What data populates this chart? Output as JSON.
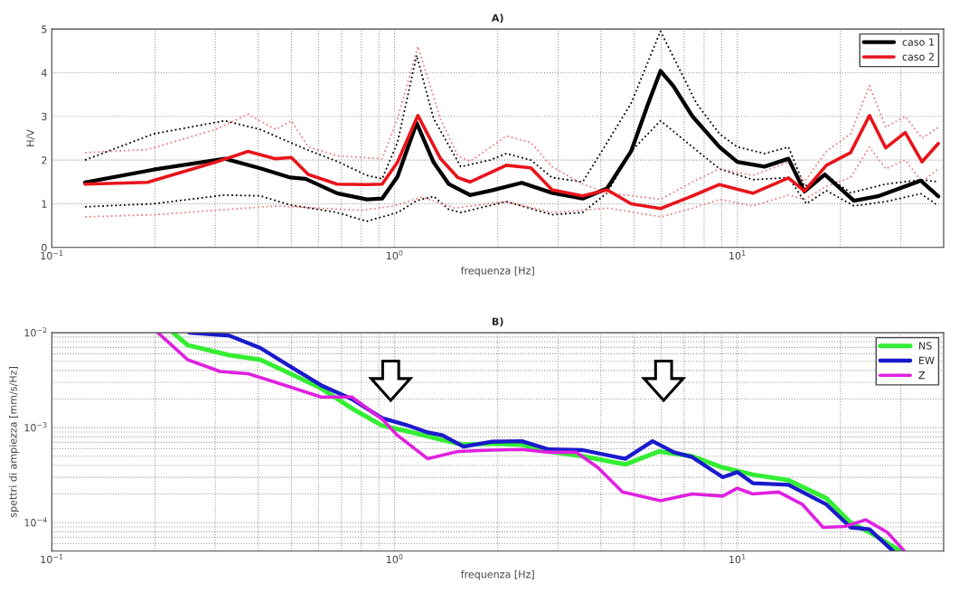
{
  "chart_data": [
    {
      "type": "line",
      "title": "A)",
      "xlabel": "frequenza [Hz]",
      "ylabel": "H/V",
      "log": "x",
      "grid": true,
      "legend": "top right",
      "xlim": [
        0.1,
        40
      ],
      "xticks": [
        {
          "value": 0.1,
          "label": "10$^{−1}$"
        },
        {
          "value": 1,
          "label": "10$^{0}$"
        },
        {
          "value": 10,
          "label": "10$^{1}$"
        }
      ],
      "ylim": [
        0,
        5
      ],
      "yticks": [
        0,
        1,
        2,
        3,
        4,
        5
      ],
      "series": [
        {
          "color": "#000000",
          "line_style": "dotted",
          "x": [
            0.125,
            0.198,
            0.32,
            0.406,
            0.55,
            0.68,
            0.83,
            0.92,
            1.02,
            1.16,
            1.3,
            1.56,
            1.9,
            2.12,
            2.5,
            2.88,
            3.54,
            4.17,
            4.9,
            5.97,
            7.6,
            8.87,
            10.0,
            12.0,
            14.1,
            15.7,
            18.2,
            21.4,
            27.1,
            34.6,
            38.6
          ],
          "values": [
            2.0,
            2.6,
            2.9,
            2.7,
            2.25,
            1.97,
            1.65,
            1.57,
            2.4,
            4.4,
            2.95,
            1.85,
            2.0,
            2.15,
            2.0,
            1.6,
            1.5,
            2.4,
            3.3,
            4.95,
            3.3,
            2.6,
            2.3,
            2.15,
            2.3,
            1.4,
            1.65,
            1.25,
            1.45,
            1.55,
            1.5
          ]
        },
        {
          "color": "#000000",
          "line_style": "dotted",
          "x": [
            0.125,
            0.198,
            0.32,
            0.406,
            0.497,
            0.68,
            0.83,
            1.02,
            1.16,
            1.3,
            1.44,
            1.56,
            2.12,
            2.88,
            3.54,
            4.17,
            4.9,
            5.97,
            7.4,
            8.87,
            11.1,
            14.1,
            15.9,
            18.2,
            21.9,
            27.1,
            34.3,
            38.6
          ],
          "values": [
            0.93,
            1.0,
            1.2,
            1.18,
            0.97,
            0.8,
            0.6,
            0.8,
            1.07,
            1.17,
            0.87,
            0.8,
            1.05,
            0.75,
            0.8,
            1.25,
            2.2,
            2.9,
            2.3,
            1.8,
            1.55,
            1.6,
            1.0,
            1.3,
            0.95,
            1.05,
            1.23,
            0.95
          ]
        },
        {
          "color": "#f08080",
          "line_style": "dotted",
          "x": [
            0.125,
            0.19,
            0.3,
            0.374,
            0.45,
            0.5,
            0.56,
            0.68,
            0.92,
            1.02,
            1.17,
            1.36,
            1.53,
            1.66,
            2.12,
            2.5,
            2.88,
            3.54,
            4.17,
            5.97,
            7.4,
            8.87,
            11.1,
            14.1,
            15.7,
            18.2,
            21.4,
            24.3,
            27.1,
            30.9,
            34.6,
            38.6
          ],
          "values": [
            2.17,
            2.24,
            2.7,
            3.05,
            2.7,
            2.9,
            2.3,
            2.1,
            2.03,
            2.95,
            4.6,
            2.95,
            2.1,
            1.97,
            2.55,
            2.4,
            1.85,
            1.45,
            1.25,
            1.1,
            1.5,
            1.8,
            1.65,
            1.95,
            1.5,
            2.2,
            2.6,
            3.7,
            2.75,
            3.0,
            2.5,
            2.75
          ]
        },
        {
          "color": "#f08080",
          "line_style": "dotted",
          "x": [
            0.125,
            0.2,
            0.3,
            0.45,
            0.6,
            0.8,
            1.0,
            1.2,
            1.5,
            2.1,
            2.9,
            4.2,
            6.0,
            7.4,
            8.9,
            11.1,
            14.1,
            15.7,
            18.2,
            21.4,
            24.3,
            27.1,
            30.9,
            34.6,
            38.6
          ],
          "values": [
            0.7,
            0.75,
            0.85,
            0.95,
            0.9,
            0.85,
            0.95,
            1.15,
            0.9,
            1.05,
            0.8,
            0.9,
            0.7,
            0.9,
            1.1,
            0.95,
            1.2,
            1.1,
            1.4,
            1.6,
            2.3,
            1.8,
            2.0,
            1.5,
            1.8
          ]
        },
        {
          "name": "caso 1",
          "color": "#000000",
          "line_style": "solid",
          "x": [
            0.125,
            0.198,
            0.32,
            0.406,
            0.497,
            0.55,
            0.68,
            0.83,
            0.92,
            1.02,
            1.16,
            1.3,
            1.44,
            1.66,
            1.91,
            2.35,
            2.88,
            3.54,
            4.17,
            4.9,
            5.5,
            5.97,
            6.5,
            7.4,
            8.87,
            10.0,
            12.0,
            14.1,
            15.7,
            18.0,
            21.9,
            25.7,
            34.3,
            38.6
          ],
          "values": [
            1.49,
            1.78,
            2.03,
            1.81,
            1.6,
            1.57,
            1.24,
            1.1,
            1.12,
            1.62,
            2.85,
            1.95,
            1.45,
            1.2,
            1.3,
            1.48,
            1.25,
            1.12,
            1.35,
            2.2,
            3.3,
            4.04,
            3.7,
            3.0,
            2.3,
            1.96,
            1.85,
            2.03,
            1.28,
            1.67,
            1.07,
            1.17,
            1.53,
            1.17
          ]
        },
        {
          "name": "caso 2",
          "color": "#e8141b",
          "line_style": "solid",
          "x": [
            0.125,
            0.19,
            0.3,
            0.374,
            0.45,
            0.5,
            0.56,
            0.68,
            0.83,
            0.92,
            1.02,
            1.17,
            1.36,
            1.53,
            1.66,
            2.12,
            2.5,
            2.88,
            3.54,
            4.17,
            4.9,
            5.97,
            7.4,
            8.87,
            11.1,
            14.1,
            15.7,
            18.2,
            21.4,
            24.3,
            27.1,
            30.9,
            34.6,
            38.6
          ],
          "values": [
            1.45,
            1.49,
            1.95,
            2.2,
            2.03,
            2.06,
            1.67,
            1.45,
            1.44,
            1.45,
            1.95,
            3.02,
            2.04,
            1.6,
            1.5,
            1.88,
            1.82,
            1.32,
            1.18,
            1.32,
            1.0,
            0.89,
            1.18,
            1.44,
            1.24,
            1.59,
            1.29,
            1.88,
            2.17,
            3.02,
            2.28,
            2.63,
            1.96,
            2.38
          ]
        }
      ]
    },
    {
      "type": "line",
      "title": "B)",
      "xlabel": "frequenza [Hz]",
      "ylabel": "spettri di ampiezza [mm/s/Hz]",
      "log": "xy",
      "grid": true,
      "legend": "top right",
      "xlim": [
        0.1,
        40
      ],
      "xticks": [
        {
          "value": 0.1,
          "label": "10$^{−1}$"
        },
        {
          "value": 1,
          "label": "10$^{0}$"
        },
        {
          "value": 10,
          "label": "10$^{1}$"
        }
      ],
      "ylim": [
        5e-05,
        0.01
      ],
      "yticks": [
        {
          "value": 0.0001,
          "label": "10$^{−4}$"
        },
        {
          "value": 0.001,
          "label": "10$^{−3}$"
        },
        {
          "value": 0.01,
          "label": "10$^{−2}$"
        }
      ],
      "series": [
        {
          "name": "NS",
          "color": "#33ee33",
          "line_style": "solid",
          "x": [
            0.226,
            0.249,
            0.33,
            0.406,
            0.497,
            0.61,
            0.75,
            0.92,
            1.13,
            1.38,
            1.59,
            1.91,
            2.35,
            2.82,
            3.54,
            4.71,
            5.9,
            7.38,
            9.07,
            11.1,
            14.1,
            18.2,
            21.4,
            24.3,
            29.7
          ],
          "values": [
            0.01,
            0.0074,
            0.0058,
            0.0052,
            0.0037,
            0.0026,
            0.0016,
            0.00105,
            0.00089,
            0.00074,
            0.00066,
            0.00068,
            0.00066,
            0.00056,
            0.0005,
            0.00041,
            0.00056,
            0.0005,
            0.00038,
            0.00032,
            0.00028,
            0.00018,
            0.0001,
            7.9e-05,
            5.1e-05
          ]
        },
        {
          "name": "EW",
          "color": "#1a1acc",
          "line_style": "solid",
          "x": [
            0.252,
            0.33,
            0.406,
            0.497,
            0.61,
            0.75,
            0.92,
            1.08,
            1.25,
            1.38,
            1.59,
            1.91,
            2.35,
            2.82,
            3.54,
            4.71,
            5.66,
            6.53,
            7.38,
            9.07,
            10.0,
            11.1,
            14.1,
            18.2,
            21.4,
            24.3,
            28.5
          ],
          "values": [
            0.01,
            0.0093,
            0.0069,
            0.0044,
            0.0028,
            0.002,
            0.00126,
            0.00107,
            0.00089,
            0.00083,
            0.00063,
            0.00071,
            0.00072,
            0.00059,
            0.00058,
            0.00047,
            0.00072,
            0.00055,
            0.00049,
            0.0003,
            0.00034,
            0.00026,
            0.00025,
            0.000155,
            8.9e-05,
            8.5e-05,
            5e-05
          ]
        },
        {
          "name": "Z",
          "color": "#e020e0",
          "line_style": "solid",
          "x": [
            0.204,
            0.249,
            0.31,
            0.374,
            0.45,
            0.61,
            0.75,
            0.92,
            1.02,
            1.25,
            1.53,
            1.91,
            2.35,
            2.82,
            3.39,
            3.92,
            4.62,
            5.97,
            7.38,
            9.07,
            10.0,
            11.1,
            13.2,
            15.5,
            17.8,
            20.6,
            23.7,
            27.4,
            30.6
          ],
          "values": [
            0.01,
            0.0052,
            0.0039,
            0.0037,
            0.003,
            0.0021,
            0.0021,
            0.00123,
            0.00083,
            0.00047,
            0.00056,
            0.00058,
            0.00059,
            0.00055,
            0.00055,
            0.00038,
            0.00021,
            0.00017,
            0.0002,
            0.00019,
            0.00023,
            0.0002,
            0.00021,
            0.000155,
            8.9e-05,
            9.1e-05,
            0.000107,
            7.9e-05,
            5.1e-05
          ]
        }
      ]
    }
  ]
}
